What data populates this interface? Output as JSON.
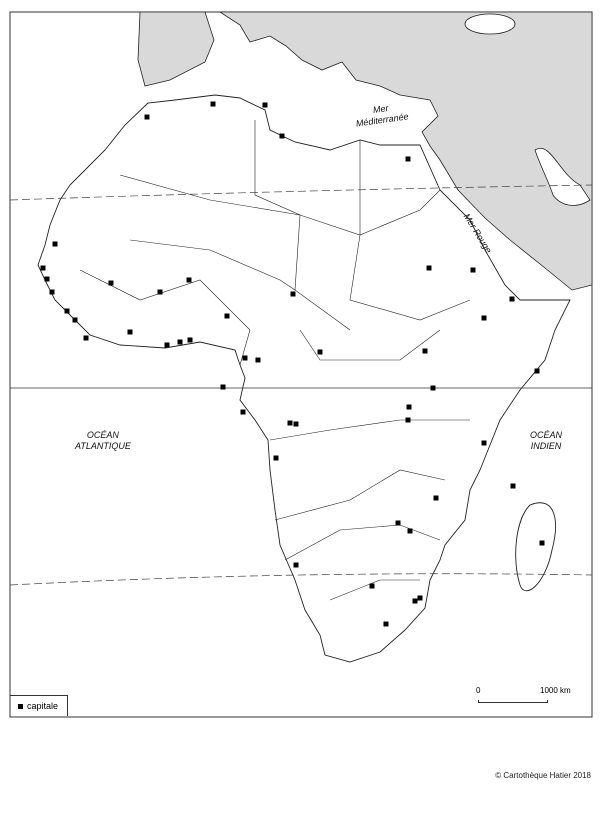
{
  "map": {
    "labels": {
      "mediterranean_1": "Mer",
      "mediterranean_2": "Méditerranée",
      "red_sea": "Mer Rouge",
      "atlantic_1": "OCÉAN",
      "atlantic_2": "ATLANTIQUE",
      "indian_1": "OCÉAN",
      "indian_2": "INDIEN"
    },
    "colors": {
      "land_other": "#d9d9d9",
      "land_africa": "#ffffff",
      "border": "#222222",
      "capital": "#000000"
    }
  },
  "legend": {
    "capital_label": "capitale",
    "capital_icon": "black-square"
  },
  "scale": {
    "start": "0",
    "end": "1000 km"
  },
  "credit": "© Cartothèque Hatier 2018"
}
